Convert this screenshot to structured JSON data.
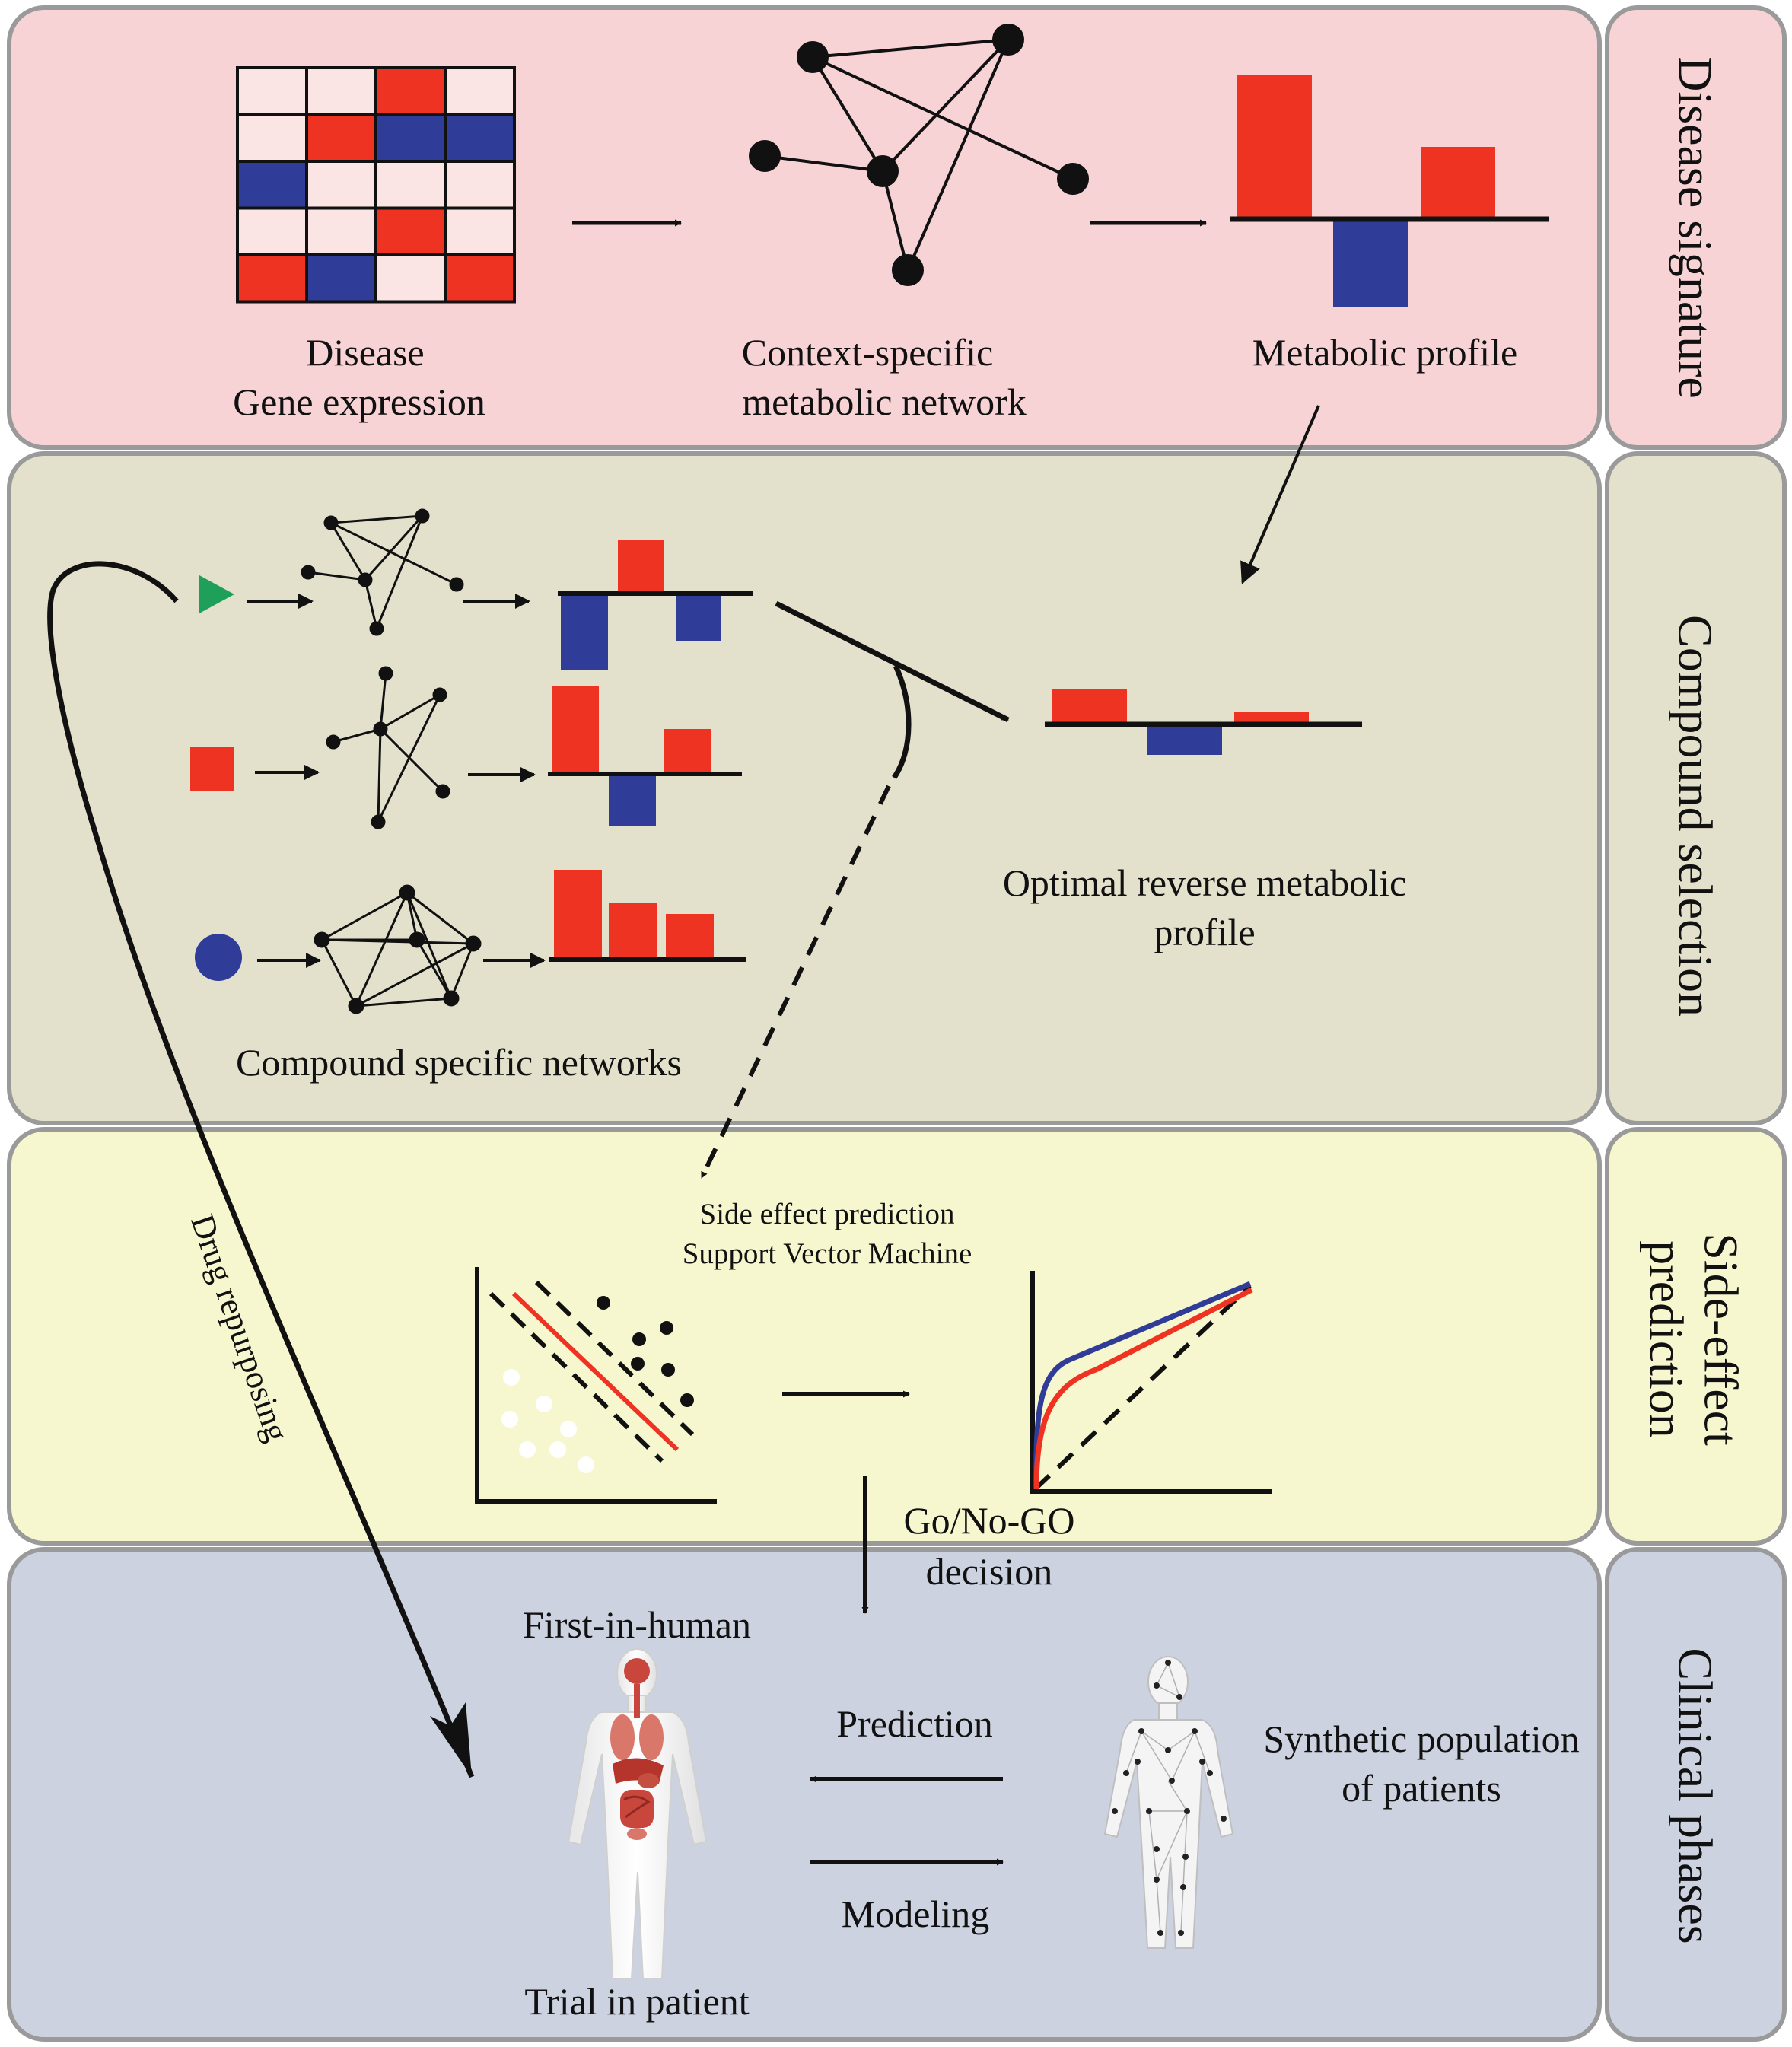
{
  "colors": {
    "red": "#ef3323",
    "blue": "#2f3d99",
    "green": "#1fa05a",
    "band_disease": "#f7d3d5",
    "band_compound": "#e3e1cc",
    "band_side": "#f7f7cf",
    "band_clinical": "#ccd2e0",
    "band_border": "#9a9a9a",
    "cell_empty": "#fae4e4"
  },
  "bands": [
    {
      "id": "disease",
      "label": "Disease signature"
    },
    {
      "id": "compound",
      "label": "Compound selection"
    },
    {
      "id": "side",
      "label_lines": [
        "Side-effect",
        "prediction"
      ]
    },
    {
      "id": "clinical",
      "label": "Clinical phases"
    }
  ],
  "disease": {
    "gene_expression_label": [
      "Disease",
      "Gene expression"
    ],
    "network_label": [
      "Context-specific",
      "metabolic network"
    ],
    "profile_label": "Metabolic profile",
    "heatmap": [
      [
        "e",
        "e",
        "r",
        "e"
      ],
      [
        "e",
        "r",
        "b",
        "b"
      ],
      [
        "b",
        "e",
        "e",
        "e"
      ],
      [
        "e",
        "e",
        "r",
        "e"
      ],
      [
        "r",
        "b",
        "e",
        "r"
      ]
    ]
  },
  "compound": {
    "compounds": [
      {
        "shape": "triangle-icon",
        "color": "#1fa05a"
      },
      {
        "shape": "square-icon",
        "color": "#ef3323"
      },
      {
        "shape": "circle-icon",
        "color": "#2f3d99"
      }
    ],
    "networks_label": "Compound specific networks",
    "optimal_label": [
      "Optimal reverse metabolic",
      "profile"
    ]
  },
  "side_effect": {
    "title": [
      "Side effect prediction",
      "Support Vector Machine"
    ],
    "decision_label": [
      "Go/No-GO",
      "decision"
    ]
  },
  "clinical": {
    "first_in_human": "First-in-human",
    "trial": "Trial in patient",
    "prediction": "Prediction",
    "modeling": "Modeling",
    "synthetic": [
      "Synthetic population",
      "of patients"
    ],
    "human_icon": "human-anatomy-icon",
    "network_body_icon": "network-body-icon"
  },
  "drug_repurposing": "Drug repurposing"
}
